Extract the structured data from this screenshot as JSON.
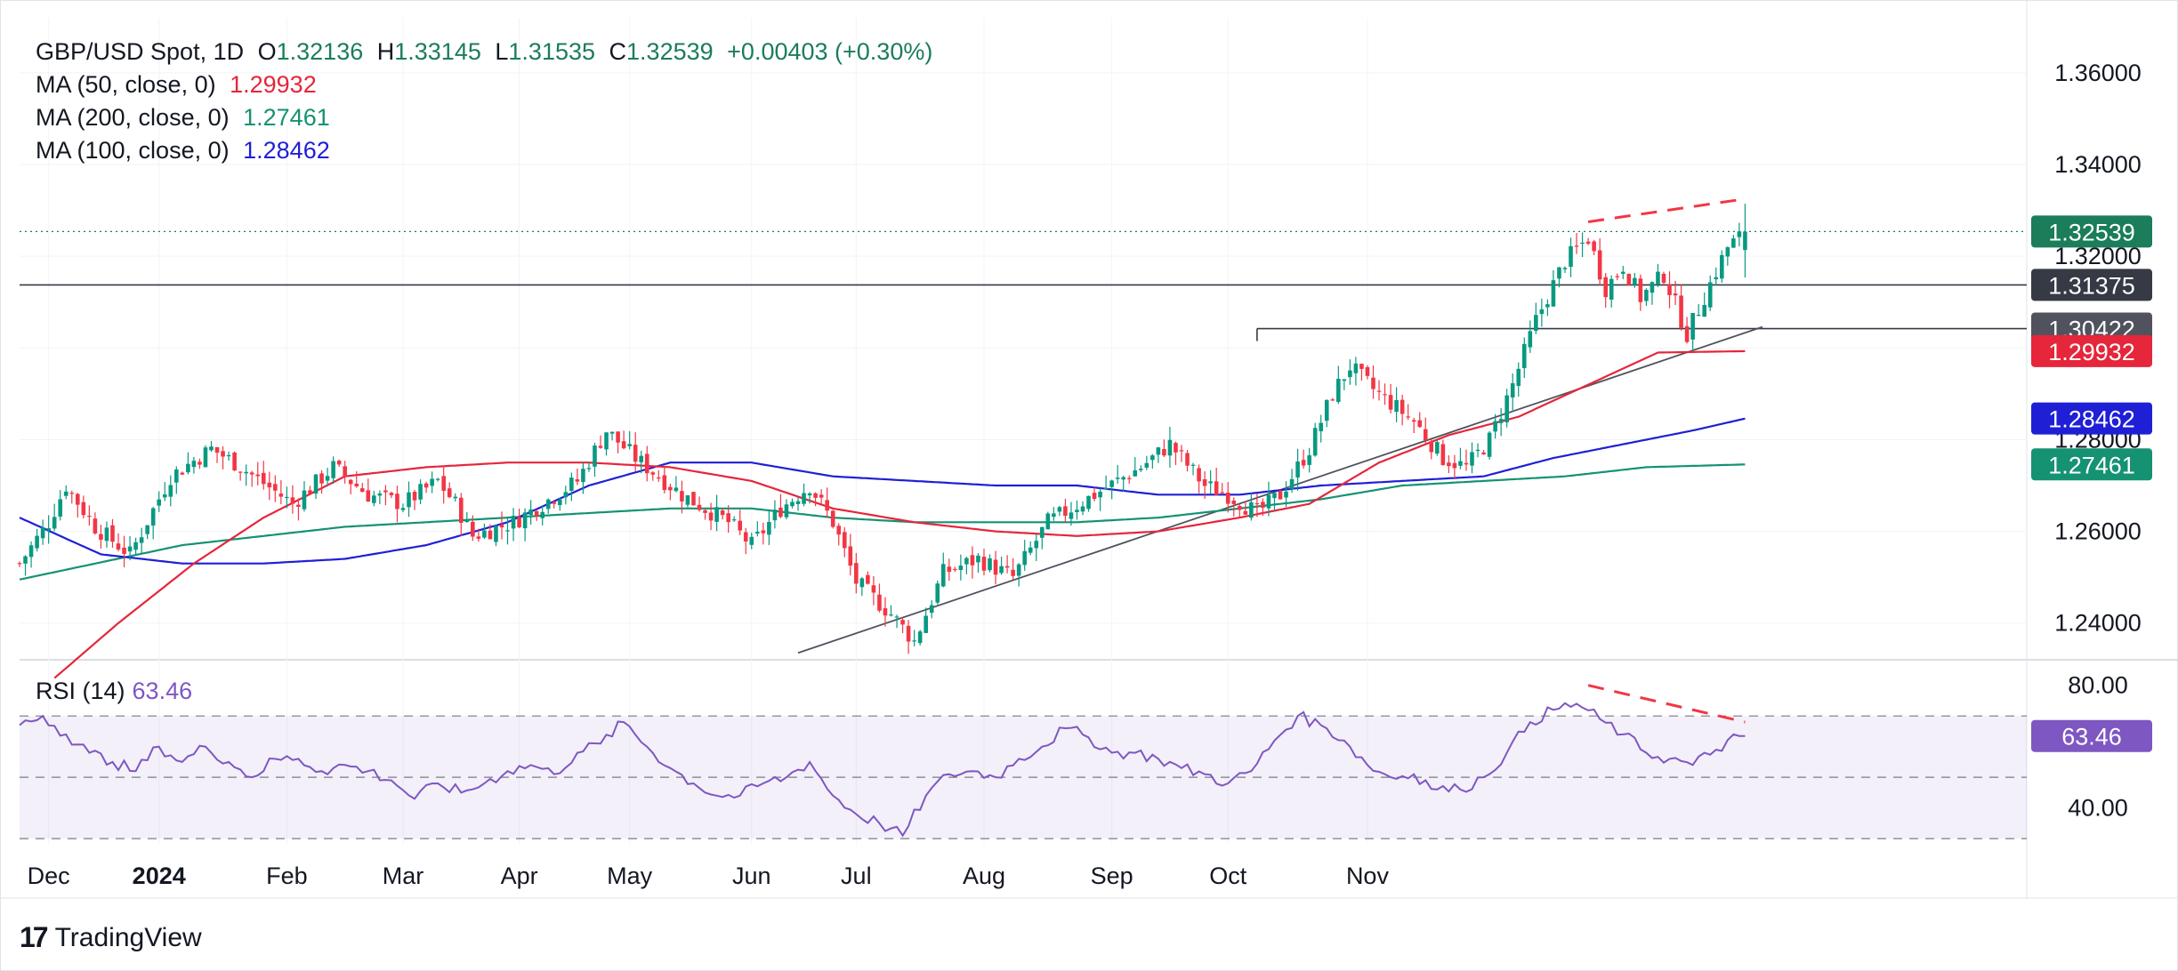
{
  "header": {
    "symbol": "GBP/USD Spot, 1D",
    "open_label": "O",
    "open": "1.32136",
    "high_label": "H",
    "high": "1.33145",
    "low_label": "L",
    "low": "1.31535",
    "close_label": "C",
    "close": "1.32539",
    "change": "+0.00403 (+0.30%)"
  },
  "indicators": [
    {
      "label": "MA (50, close, 0)",
      "value": "1.29932",
      "color": "#e5263b"
    },
    {
      "label": "MA (200, close, 0)",
      "value": "1.27461",
      "color": "#159272"
    },
    {
      "label": "MA (100, close, 0)",
      "value": "1.28462",
      "color": "#1f1fd6"
    }
  ],
  "rsi": {
    "label": "RSI (14)",
    "value": "63.46",
    "color": "#7e57c2"
  },
  "brand": "TradingView",
  "chart_data": {
    "type": "candlestick",
    "title": "GBP/USD Spot, 1D",
    "price_axis": {
      "ylim": [
        1.232,
        1.372
      ],
      "ticks": [
        "1.36000",
        "1.34000",
        "1.32000",
        "1.28000",
        "1.26000",
        "1.24000"
      ]
    },
    "time_axis": {
      "ticks": [
        "Dec",
        "2024",
        "Feb",
        "Mar",
        "Apr",
        "May",
        "Jun",
        "Jul",
        "Aug",
        "Sep",
        "Oct",
        "Nov"
      ]
    },
    "price_labels": [
      {
        "text": "1.32539",
        "value": 1.32539,
        "color": "#1b7d5a"
      },
      {
        "text": "1.31375",
        "value": 1.31375,
        "color": "#363a45"
      },
      {
        "text": "1.30422",
        "value": 1.30422,
        "color": "#50535e"
      },
      {
        "text": "1.29932",
        "value": 1.29932,
        "color": "#e5263b"
      },
      {
        "text": "1.28462",
        "value": 1.28462,
        "color": "#1f1fd6"
      },
      {
        "text": "1.27461",
        "value": 1.27461,
        "color": "#159272"
      }
    ],
    "horizontal_line": 1.31375,
    "resistance_line": {
      "start_day": 213,
      "value": 1.30422
    },
    "trend_line": {
      "from": {
        "day": 134,
        "value": 1.2335
      },
      "to": {
        "day": 300,
        "value": 1.3046
      }
    },
    "key_points": [
      [
        0,
        1.253
      ],
      [
        5,
        1.262
      ],
      [
        8,
        1.27
      ],
      [
        13,
        1.261
      ],
      [
        19,
        1.255
      ],
      [
        26,
        1.272
      ],
      [
        33,
        1.278
      ],
      [
        37,
        1.275
      ],
      [
        47,
        1.266
      ],
      [
        54,
        1.274
      ],
      [
        60,
        1.268
      ],
      [
        66,
        1.266
      ],
      [
        72,
        1.271
      ],
      [
        75,
        1.266
      ],
      [
        78,
        1.259
      ],
      [
        85,
        1.262
      ],
      [
        90,
        1.266
      ],
      [
        96,
        1.271
      ],
      [
        101,
        1.282
      ],
      [
        106,
        1.276
      ],
      [
        114,
        1.268
      ],
      [
        122,
        1.262
      ],
      [
        126,
        1.257
      ],
      [
        131,
        1.265
      ],
      [
        136,
        1.27
      ],
      [
        140,
        1.262
      ],
      [
        144,
        1.249
      ],
      [
        150,
        1.242
      ],
      [
        154,
        1.236
      ],
      [
        159,
        1.251
      ],
      [
        165,
        1.254
      ],
      [
        171,
        1.25
      ],
      [
        177,
        1.262
      ],
      [
        185,
        1.268
      ],
      [
        193,
        1.274
      ],
      [
        198,
        1.279
      ],
      [
        204,
        1.27
      ],
      [
        208,
        1.268
      ],
      [
        213,
        1.264
      ],
      [
        217,
        1.268
      ],
      [
        222,
        1.278
      ],
      [
        226,
        1.29
      ],
      [
        229,
        1.296
      ],
      [
        233,
        1.291
      ],
      [
        240,
        1.284
      ],
      [
        245,
        1.276
      ],
      [
        249,
        1.274
      ],
      [
        253,
        1.28
      ],
      [
        257,
        1.292
      ],
      [
        261,
        1.306
      ],
      [
        266,
        1.319
      ],
      [
        270,
        1.324
      ],
      [
        273,
        1.313
      ],
      [
        276,
        1.318
      ],
      [
        279,
        1.311
      ],
      [
        283,
        1.316
      ],
      [
        287,
        1.303
      ],
      [
        291,
        1.314
      ],
      [
        294,
        1.322
      ],
      [
        297,
        1.3251
      ]
    ],
    "ma50_points": [
      [
        6,
        1.228
      ],
      [
        17,
        1.24
      ],
      [
        30,
        1.253
      ],
      [
        42,
        1.263
      ],
      [
        56,
        1.272
      ],
      [
        70,
        1.274
      ],
      [
        84,
        1.275
      ],
      [
        98,
        1.275
      ],
      [
        112,
        1.274
      ],
      [
        126,
        1.271
      ],
      [
        140,
        1.265
      ],
      [
        154,
        1.262
      ],
      [
        168,
        1.26
      ],
      [
        182,
        1.259
      ],
      [
        196,
        1.26
      ],
      [
        210,
        1.263
      ],
      [
        222,
        1.266
      ],
      [
        234,
        1.275
      ],
      [
        246,
        1.281
      ],
      [
        258,
        1.285
      ],
      [
        270,
        1.292
      ],
      [
        282,
        1.299
      ],
      [
        297,
        1.2993
      ]
    ],
    "ma100_points": [
      [
        0,
        1.263
      ],
      [
        14,
        1.255
      ],
      [
        28,
        1.253
      ],
      [
        42,
        1.253
      ],
      [
        56,
        1.254
      ],
      [
        70,
        1.257
      ],
      [
        84,
        1.262
      ],
      [
        98,
        1.27
      ],
      [
        112,
        1.275
      ],
      [
        126,
        1.275
      ],
      [
        140,
        1.272
      ],
      [
        154,
        1.271
      ],
      [
        168,
        1.27
      ],
      [
        182,
        1.27
      ],
      [
        196,
        1.268
      ],
      [
        210,
        1.268
      ],
      [
        224,
        1.27
      ],
      [
        238,
        1.271
      ],
      [
        252,
        1.272
      ],
      [
        264,
        1.276
      ],
      [
        276,
        1.279
      ],
      [
        288,
        1.282
      ],
      [
        297,
        1.2846
      ]
    ],
    "ma200_points": [
      [
        0,
        1.2495
      ],
      [
        28,
        1.257
      ],
      [
        56,
        1.261
      ],
      [
        84,
        1.263
      ],
      [
        112,
        1.265
      ],
      [
        126,
        1.265
      ],
      [
        140,
        1.263
      ],
      [
        154,
        1.262
      ],
      [
        168,
        1.262
      ],
      [
        182,
        1.262
      ],
      [
        196,
        1.263
      ],
      [
        210,
        1.265
      ],
      [
        224,
        1.267
      ],
      [
        238,
        1.27
      ],
      [
        252,
        1.271
      ],
      [
        266,
        1.272
      ],
      [
        280,
        1.274
      ],
      [
        297,
        1.2746
      ]
    ],
    "rsi_panel": {
      "ylim": [
        28,
        86
      ],
      "ticks": [
        "80.00",
        "40.00"
      ],
      "band_upper": 70,
      "band_mid": 50,
      "band_lower": 30,
      "points": [
        [
          0,
          67
        ],
        [
          4,
          70
        ],
        [
          8,
          64
        ],
        [
          12,
          58
        ],
        [
          16,
          55
        ],
        [
          20,
          52
        ],
        [
          24,
          60
        ],
        [
          28,
          55
        ],
        [
          32,
          60
        ],
        [
          36,
          55
        ],
        [
          40,
          50
        ],
        [
          44,
          56
        ],
        [
          48,
          56
        ],
        [
          52,
          52
        ],
        [
          56,
          54
        ],
        [
          60,
          52
        ],
        [
          64,
          49
        ],
        [
          68,
          43
        ],
        [
          72,
          48
        ],
        [
          76,
          45
        ],
        [
          80,
          48
        ],
        [
          84,
          52
        ],
        [
          88,
          54
        ],
        [
          92,
          51
        ],
        [
          96,
          58
        ],
        [
          100,
          61
        ],
        [
          104,
          68
        ],
        [
          108,
          60
        ],
        [
          112,
          53
        ],
        [
          116,
          48
        ],
        [
          120,
          44
        ],
        [
          124,
          44
        ],
        [
          128,
          48
        ],
        [
          132,
          50
        ],
        [
          136,
          55
        ],
        [
          140,
          44
        ],
        [
          144,
          38
        ],
        [
          148,
          35
        ],
        [
          152,
          31
        ],
        [
          156,
          44
        ],
        [
          160,
          51
        ],
        [
          164,
          52
        ],
        [
          168,
          50
        ],
        [
          172,
          56
        ],
        [
          176,
          60
        ],
        [
          180,
          66
        ],
        [
          184,
          63
        ],
        [
          188,
          58
        ],
        [
          192,
          58
        ],
        [
          196,
          56
        ],
        [
          200,
          53
        ],
        [
          204,
          51
        ],
        [
          208,
          48
        ],
        [
          212,
          52
        ],
        [
          216,
          62
        ],
        [
          220,
          70
        ],
        [
          224,
          67
        ],
        [
          228,
          62
        ],
        [
          232,
          54
        ],
        [
          236,
          50
        ],
        [
          240,
          51
        ],
        [
          244,
          46
        ],
        [
          248,
          46
        ],
        [
          252,
          50
        ],
        [
          256,
          58
        ],
        [
          260,
          68
        ],
        [
          264,
          72
        ],
        [
          268,
          74
        ],
        [
          272,
          69
        ],
        [
          276,
          64
        ],
        [
          280,
          58
        ],
        [
          284,
          56
        ],
        [
          288,
          54
        ],
        [
          292,
          59
        ],
        [
          296,
          63.46
        ]
      ],
      "divergence_line": {
        "from": [
          270,
          80
        ],
        "to": [
          297,
          68
        ]
      }
    },
    "price_divergence_line": {
      "from": [
        270,
        1.3275
      ],
      "to": [
        297,
        1.3325
      ]
    }
  }
}
